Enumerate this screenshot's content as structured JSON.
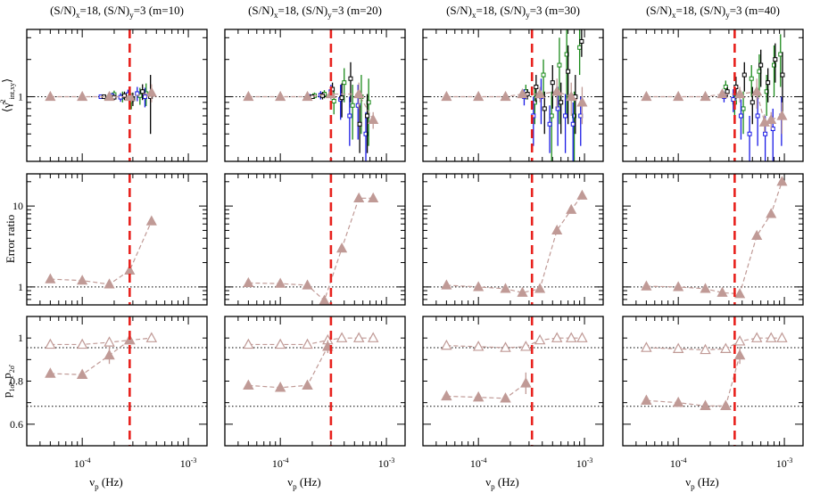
{
  "figure": {
    "panel_titles": [
      {
        "base": "(S/N)",
        "sub_x": "x",
        "mid": "=18, (S/N)",
        "sub_y": "y",
        "tail": "=3 (m=10)"
      },
      {
        "base": "(S/N)",
        "sub_x": "x",
        "mid": "=18, (S/N)",
        "sub_y": "y",
        "tail": "=3 (m=20)"
      },
      {
        "base": "(S/N)",
        "sub_x": "x",
        "mid": "=18, (S/N)",
        "sub_y": "y",
        "tail": "=3 (m=30)"
      },
      {
        "base": "(S/N)",
        "sub_x": "x",
        "mid": "=18, (S/N)",
        "sub_y": "y",
        "tail": "=3 (m=40)"
      }
    ],
    "xlabel": {
      "base": "ν",
      "sub": "p",
      "tail": " (Hz)"
    },
    "x_tick_labels": [
      {
        "base": "10",
        "exp": "-4",
        "value": 0.0001
      },
      {
        "base": "10",
        "exp": "-3",
        "value": 0.001
      }
    ],
    "row_ylabels": [
      {
        "base": "⟨γ̂",
        "sup": "2",
        "sub": "int,xy",
        "tail": "⟩"
      },
      {
        "base": "Error ratio"
      },
      {
        "base": "p",
        "sub1": "1σ̂",
        "mid": ", p",
        "sub2": "2σ̂"
      }
    ],
    "row_y_tick_labels": [
      [
        "1"
      ],
      [
        "1",
        "10"
      ],
      [
        "0.6",
        "0.8",
        "1"
      ]
    ]
  },
  "colors": {
    "triangle": "#c09a96",
    "dashed_connector": "#c09a96",
    "vline": "#e8221e",
    "green": "#1a8a1a",
    "blue": "#1a1ae6",
    "black": "#000000"
  },
  "chart_data": {
    "type": "scatter",
    "xscale": "log",
    "xlim": [
      3e-05,
      0.0015
    ],
    "columns": [
      {
        "m": 10,
        "vline_x": 0.00028,
        "coherence": {
          "ylim": [
            0.3,
            3.5
          ],
          "yscale": "log",
          "refline": 1,
          "triangles": {
            "x": [
              5e-05,
              0.0001,
              0.00018,
              0.00028,
              0.00045
            ],
            "y": [
              1.0,
              1.0,
              1.0,
              1.0,
              1.08
            ],
            "err": [
              0.02,
              0.02,
              0.04,
              0.1,
              0.18
            ]
          },
          "green": {
            "x": [
              0.00017,
              0.0002,
              0.00024,
              0.00029,
              0.00035,
              0.0004
            ],
            "y": [
              0.97,
              1.04,
              1.0,
              0.93,
              1.02,
              1.06
            ],
            "err": [
              0.04,
              0.08,
              0.1,
              0.14,
              0.16,
              0.22
            ]
          },
          "blue": {
            "x": [
              0.00015,
              0.00019,
              0.00023,
              0.00027,
              0.00033,
              0.00039
            ],
            "y": [
              1.0,
              1.02,
              0.99,
              1.04,
              1.06,
              1.0
            ],
            "err": [
              0.03,
              0.05,
              0.08,
              0.1,
              0.14,
              0.18
            ]
          },
          "black": {
            "x": [
              0.00016,
              0.0002,
              0.00025,
              0.0003,
              0.00037,
              0.00044
            ],
            "y": [
              1.0,
              0.99,
              1.02,
              0.96,
              1.1,
              1.0
            ],
            "err": [
              0.03,
              0.05,
              0.08,
              0.12,
              0.16,
              0.5
            ]
          }
        },
        "error_ratio": {
          "ylim": [
            0.6,
            25
          ],
          "yscale": "log",
          "refline": 1,
          "triangles": {
            "x": [
              5e-05,
              0.0001,
              0.00018,
              0.00028,
              0.00045
            ],
            "y": [
              1.25,
              1.2,
              1.08,
              1.6,
              6.5
            ]
          }
        },
        "probability": {
          "ylim": [
            0.5,
            1.1
          ],
          "yscale": "linear",
          "reflines": [
            0.955,
            0.683
          ],
          "filled": {
            "x": [
              5e-05,
              0.0001,
              0.00018,
              0.00028
            ],
            "y": [
              0.835,
              0.83,
              0.92,
              0.99
            ],
            "err": [
              0.0,
              0.0,
              0.04,
              0.0
            ]
          },
          "open": {
            "x": [
              5e-05,
              0.0001,
              0.00018,
              0.00028,
              0.00045
            ],
            "y": [
              0.97,
              0.97,
              0.98,
              0.99,
              1.0
            ]
          }
        }
      },
      {
        "m": 20,
        "vline_x": 0.0003,
        "coherence": {
          "ylim": [
            0.3,
            3.5
          ],
          "yscale": "log",
          "refline": 1,
          "triangles": {
            "x": [
              5e-05,
              0.0001,
              0.00018,
              0.0003,
              0.00055,
              0.00075
            ],
            "y": [
              1.0,
              1.0,
              1.0,
              1.05,
              1.05,
              0.65
            ],
            "err": [
              0.02,
              0.02,
              0.04,
              0.1,
              0.25,
              0.1
            ]
          },
          "green": {
            "x": [
              0.00021,
              0.00026,
              0.00032,
              0.0004,
              0.00048,
              0.00058,
              0.00068
            ],
            "y": [
              1.02,
              1.05,
              0.92,
              1.3,
              0.85,
              1.0,
              0.9
            ],
            "err": [
              0.06,
              0.08,
              0.2,
              0.4,
              0.4,
              0.5,
              0.5
            ]
          },
          "blue": {
            "x": [
              0.00019,
              0.00024,
              0.0003,
              0.00037,
              0.00045,
              0.00054,
              0.00064
            ],
            "y": [
              1.0,
              1.03,
              1.1,
              0.95,
              0.7,
              0.85,
              0.5
            ],
            "err": [
              0.05,
              0.08,
              0.15,
              0.3,
              0.3,
              0.4,
              0.25
            ]
          },
          "black": {
            "x": [
              0.0002,
              0.00025,
              0.00031,
              0.00038,
              0.00046,
              0.00056,
              0.00066
            ],
            "y": [
              1.0,
              1.02,
              1.15,
              0.98,
              1.4,
              0.6,
              0.7
            ],
            "err": [
              0.04,
              0.07,
              0.15,
              0.3,
              0.5,
              0.25,
              0.35
            ]
          }
        },
        "error_ratio": {
          "ylim": [
            0.6,
            25
          ],
          "yscale": "log",
          "refline": 1,
          "triangles": {
            "x": [
              5e-05,
              0.0001,
              0.00018,
              0.00026,
              0.00038,
              0.00055,
              0.00075
            ],
            "y": [
              1.12,
              1.1,
              1.05,
              0.68,
              3.0,
              12.5,
              12.5
            ]
          }
        },
        "probability": {
          "ylim": [
            0.5,
            1.1
          ],
          "yscale": "linear",
          "reflines": [
            0.955,
            0.683
          ],
          "filled": {
            "x": [
              5e-05,
              0.0001,
              0.00018,
              0.00028
            ],
            "y": [
              0.78,
              0.77,
              0.78,
              0.96
            ],
            "err": [
              0.0,
              0.0,
              0.0,
              0.03
            ]
          },
          "open": {
            "x": [
              5e-05,
              0.0001,
              0.00018,
              0.00028,
              0.00038,
              0.00055,
              0.00075
            ],
            "y": [
              0.97,
              0.97,
              0.97,
              0.99,
              1.0,
              1.0,
              1.0
            ]
          }
        }
      },
      {
        "m": 30,
        "vline_x": 0.00032,
        "coherence": {
          "ylim": [
            0.3,
            3.5
          ],
          "yscale": "log",
          "refline": 1,
          "triangles": {
            "x": [
              5e-05,
              0.0001,
              0.00018,
              0.00026,
              0.00038,
              0.00055,
              0.00075,
              0.00095
            ],
            "y": [
              1.0,
              1.0,
              1.0,
              1.05,
              1.05,
              1.1,
              1.0,
              0.9
            ],
            "err": [
              0.02,
              0.02,
              0.04,
              0.08,
              0.15,
              0.3,
              0.3,
              0.3
            ]
          },
          "green": {
            "x": [
              0.00028,
              0.00034,
              0.00041,
              0.00049,
              0.00058,
              0.00068,
              0.0008,
              0.0009
            ],
            "y": [
              1.1,
              0.9,
              1.5,
              0.7,
              1.8,
              2.2,
              0.7,
              2.5
            ],
            "err": [
              0.15,
              0.3,
              0.5,
              0.4,
              1.2,
              1.5,
              0.4,
              1.0
            ]
          },
          "blue": {
            "x": [
              0.00027,
              0.00033,
              0.00039,
              0.00047,
              0.00056,
              0.00066,
              0.00078,
              0.00092
            ],
            "y": [
              1.0,
              0.7,
              1.0,
              0.6,
              0.8,
              0.7,
              0.6,
              0.7
            ],
            "err": [
              0.15,
              0.3,
              0.4,
              0.25,
              0.4,
              0.35,
              0.3,
              0.3
            ]
          },
          "black": {
            "x": [
              0.00029,
              0.00035,
              0.00042,
              0.0005,
              0.0006,
              0.0007,
              0.00082,
              0.00094
            ],
            "y": [
              1.05,
              1.2,
              0.8,
              1.3,
              0.9,
              1.6,
              1.0,
              2.8
            ],
            "err": [
              0.1,
              0.3,
              0.3,
              0.5,
              0.4,
              1.0,
              0.5,
              0.7
            ]
          }
        },
        "error_ratio": {
          "ylim": [
            0.6,
            25
          ],
          "yscale": "log",
          "refline": 1,
          "triangles": {
            "x": [
              5e-05,
              0.0001,
              0.00018,
              0.00026,
              0.00038,
              0.00055,
              0.00075,
              0.00095
            ],
            "y": [
              1.05,
              1.0,
              0.95,
              0.85,
              0.95,
              5.0,
              9.0,
              13.5
            ]
          }
        },
        "probability": {
          "ylim": [
            0.5,
            1.1
          ],
          "yscale": "linear",
          "reflines": [
            0.955,
            0.683
          ],
          "filled": {
            "x": [
              5e-05,
              0.0001,
              0.00018,
              0.00028
            ],
            "y": [
              0.73,
              0.725,
              0.72,
              0.79
            ],
            "err": [
              0.0,
              0.0,
              0.0,
              0.05
            ]
          },
          "open": {
            "x": [
              5e-05,
              0.0001,
              0.00018,
              0.00028,
              0.00038,
              0.00055,
              0.00075,
              0.00095
            ],
            "y": [
              0.965,
              0.96,
              0.955,
              0.96,
              0.99,
              1.0,
              1.0,
              1.0
            ]
          }
        }
      },
      {
        "m": 40,
        "vline_x": 0.00034,
        "coherence": {
          "ylim": [
            0.3,
            3.5
          ],
          "yscale": "log",
          "refline": 1,
          "triangles": {
            "x": [
              5e-05,
              0.0001,
              0.00018,
              0.00026,
              0.00038,
              0.00055,
              0.00065,
              0.00075,
              0.00095
            ],
            "y": [
              1.0,
              1.0,
              1.0,
              1.05,
              1.05,
              1.1,
              0.62,
              0.65,
              0.7
            ],
            "err": [
              0.02,
              0.02,
              0.04,
              0.08,
              0.15,
              0.3,
              0.1,
              0.1,
              0.2
            ]
          },
          "green": {
            "x": [
              0.00028,
              0.00034,
              0.00041,
              0.00049,
              0.00058,
              0.00068,
              0.0008,
              0.00092
            ],
            "y": [
              1.2,
              0.9,
              0.8,
              1.4,
              1.6,
              1.1,
              1.8,
              2.2
            ],
            "err": [
              0.15,
              0.2,
              0.3,
              0.4,
              0.6,
              0.4,
              0.8,
              1.0
            ]
          },
          "blue": {
            "x": [
              0.00027,
              0.00033,
              0.00039,
              0.00047,
              0.00056,
              0.00066,
              0.00078,
              0.00094
            ],
            "y": [
              1.0,
              0.95,
              0.7,
              0.5,
              0.7,
              0.5,
              0.55,
              0.7
            ],
            "err": [
              0.1,
              0.2,
              0.25,
              0.2,
              0.3,
              0.2,
              0.25,
              0.3
            ]
          },
          "black": {
            "x": [
              0.00029,
              0.00035,
              0.00042,
              0.0005,
              0.0006,
              0.0007,
              0.00082,
              0.00096
            ],
            "y": [
              1.1,
              1.2,
              1.5,
              0.9,
              1.8,
              1.3,
              2.0,
              1.5
            ],
            "err": [
              0.1,
              0.25,
              0.4,
              0.3,
              0.6,
              0.4,
              0.7,
              0.8
            ]
          }
        },
        "error_ratio": {
          "ylim": [
            0.6,
            25
          ],
          "yscale": "log",
          "refline": 1,
          "triangles": {
            "x": [
              5e-05,
              0.0001,
              0.00018,
              0.00026,
              0.00038,
              0.00055,
              0.00075,
              0.00095
            ],
            "y": [
              1.02,
              1.0,
              0.95,
              0.85,
              0.82,
              4.3,
              8.0,
              20.0
            ]
          }
        },
        "probability": {
          "ylim": [
            0.5,
            1.1
          ],
          "yscale": "linear",
          "reflines": [
            0.955,
            0.683
          ],
          "filled": {
            "x": [
              5e-05,
              0.0001,
              0.00018,
              0.00028,
              0.00038
            ],
            "y": [
              0.71,
              0.7,
              0.685,
              0.685,
              0.92
            ],
            "err": [
              0.0,
              0.0,
              0.0,
              0.0,
              0.04
            ]
          },
          "open": {
            "x": [
              5e-05,
              0.0001,
              0.00018,
              0.00028,
              0.00038,
              0.00055,
              0.00075,
              0.00095
            ],
            "y": [
              0.955,
              0.95,
              0.945,
              0.95,
              0.985,
              1.0,
              1.0,
              1.0
            ]
          }
        }
      }
    ]
  }
}
